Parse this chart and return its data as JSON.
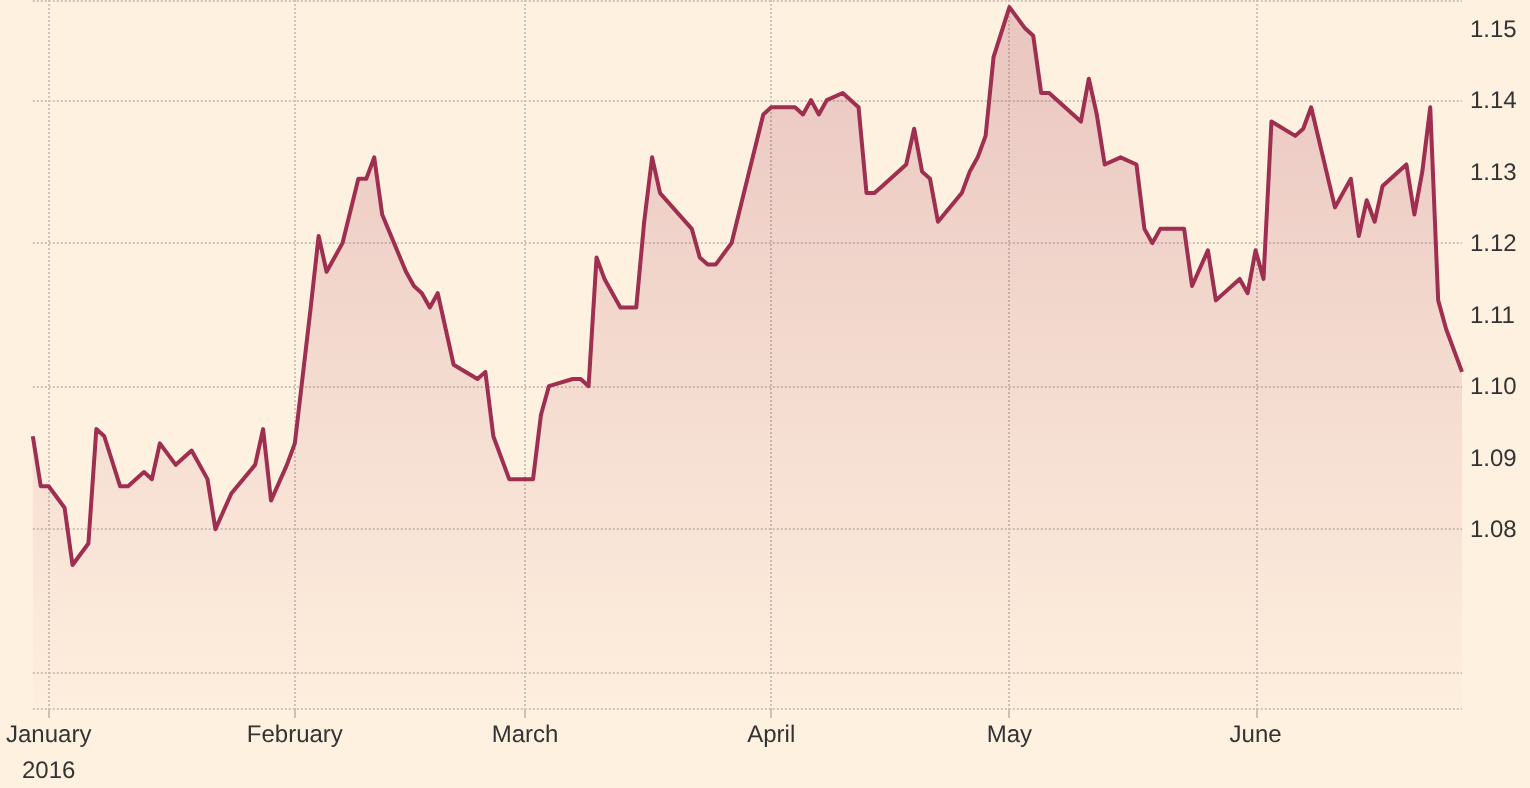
{
  "chart_data": {
    "type": "area",
    "color": "#9e2f50",
    "marker": "none",
    "grid": true,
    "x": [
      "2015-12-30",
      "2015-12-31",
      "2016-01-01",
      "2016-01-03",
      "2016-01-04",
      "2016-01-06",
      "2016-01-07",
      "2016-01-08",
      "2016-01-10",
      "2016-01-11",
      "2016-01-13",
      "2016-01-14",
      "2016-01-15",
      "2016-01-17",
      "2016-01-19",
      "2016-01-21",
      "2016-01-22",
      "2016-01-24",
      "2016-01-27",
      "2016-01-28",
      "2016-01-29",
      "2016-01-31",
      "2016-02-01",
      "2016-02-03",
      "2016-02-04",
      "2016-02-05",
      "2016-02-07",
      "2016-02-09",
      "2016-02-10",
      "2016-02-11",
      "2016-02-12",
      "2016-02-15",
      "2016-02-16",
      "2016-02-17",
      "2016-02-18",
      "2016-02-19",
      "2016-02-21",
      "2016-02-24",
      "2016-02-25",
      "2016-02-26",
      "2016-02-28",
      "2016-03-02",
      "2016-03-03",
      "2016-03-04",
      "2016-03-07",
      "2016-03-08",
      "2016-03-09",
      "2016-03-10",
      "2016-03-11",
      "2016-03-13",
      "2016-03-15",
      "2016-03-16",
      "2016-03-17",
      "2016-03-18",
      "2016-03-22",
      "2016-03-23",
      "2016-03-24",
      "2016-03-25",
      "2016-03-27",
      "2016-03-29",
      "2016-03-31",
      "2016-04-01",
      "2016-04-04",
      "2016-04-05",
      "2016-04-06",
      "2016-04-07",
      "2016-04-08",
      "2016-04-10",
      "2016-04-12",
      "2016-04-13",
      "2016-04-14",
      "2016-04-15",
      "2016-04-18",
      "2016-04-19",
      "2016-04-20",
      "2016-04-21",
      "2016-04-22",
      "2016-04-25",
      "2016-04-26",
      "2016-04-27",
      "2016-04-28",
      "2016-04-29",
      "2016-05-01",
      "2016-05-03",
      "2016-05-04",
      "2016-05-05",
      "2016-05-06",
      "2016-05-10",
      "2016-05-11",
      "2016-05-12",
      "2016-05-13",
      "2016-05-15",
      "2016-05-17",
      "2016-05-18",
      "2016-05-19",
      "2016-05-20",
      "2016-05-23",
      "2016-05-24",
      "2016-05-26",
      "2016-05-27",
      "2016-05-30",
      "2016-05-31",
      "2016-06-01",
      "2016-06-02",
      "2016-06-03",
      "2016-06-06",
      "2016-06-07",
      "2016-06-08",
      "2016-06-11",
      "2016-06-13",
      "2016-06-14",
      "2016-06-15",
      "2016-06-16",
      "2016-06-17",
      "2016-06-20",
      "2016-06-21",
      "2016-06-22",
      "2016-06-23",
      "2016-06-24",
      "2016-06-25",
      "2016-06-27"
    ],
    "values": [
      1.093,
      1.086,
      1.086,
      1.083,
      1.075,
      1.078,
      1.094,
      1.093,
      1.086,
      1.086,
      1.088,
      1.087,
      1.092,
      1.089,
      1.091,
      1.087,
      1.08,
      1.085,
      1.089,
      1.094,
      1.084,
      1.089,
      1.092,
      1.111,
      1.121,
      1.116,
      1.12,
      1.129,
      1.129,
      1.132,
      1.124,
      1.116,
      1.114,
      1.113,
      1.111,
      1.113,
      1.103,
      1.101,
      1.102,
      1.093,
      1.087,
      1.087,
      1.096,
      1.1,
      1.101,
      1.101,
      1.1,
      1.118,
      1.115,
      1.111,
      1.111,
      1.123,
      1.132,
      1.127,
      1.122,
      1.118,
      1.117,
      1.117,
      1.12,
      1.129,
      1.138,
      1.139,
      1.139,
      1.138,
      1.14,
      1.138,
      1.14,
      1.141,
      1.139,
      1.127,
      1.127,
      1.128,
      1.131,
      1.136,
      1.13,
      1.129,
      1.123,
      1.127,
      1.13,
      1.132,
      1.135,
      1.146,
      1.153,
      1.15,
      1.149,
      1.141,
      1.141,
      1.137,
      1.143,
      1.138,
      1.131,
      1.132,
      1.131,
      1.122,
      1.12,
      1.122,
      1.122,
      1.114,
      1.119,
      1.112,
      1.115,
      1.113,
      1.119,
      1.115,
      1.137,
      1.135,
      1.136,
      1.139,
      1.125,
      1.129,
      1.121,
      1.126,
      1.123,
      1.128,
      1.131,
      1.124,
      1.13,
      1.139,
      1.112,
      1.108,
      1.102
    ],
    "xlim": [
      "2015-12-30",
      "2016-06-27"
    ],
    "xticks": [
      {
        "value": "2016-01-01",
        "label": "January\n2016"
      },
      {
        "value": "2016-02-01",
        "label": "February"
      },
      {
        "value": "2016-03-01",
        "label": "March"
      },
      {
        "value": "2016-04-01",
        "label": "April"
      },
      {
        "value": "2016-05-01",
        "label": "May"
      },
      {
        "value": "2016-06-01",
        "label": "June"
      }
    ],
    "ylim": [
      1.055,
      1.154
    ],
    "yticks": [
      1.08,
      1.09,
      {
        "value": 1.1,
        "label": "1.10"
      },
      1.11,
      1.12,
      1.13,
      1.14,
      1.15
    ]
  }
}
